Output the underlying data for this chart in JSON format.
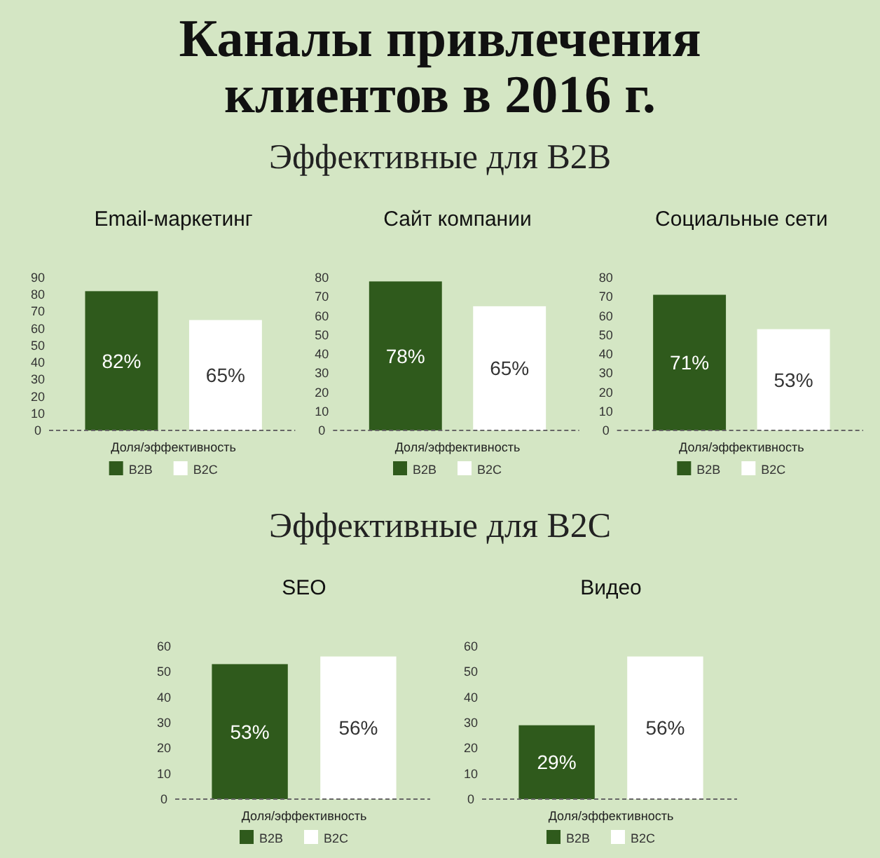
{
  "chart_data": [
    {
      "type": "other",
      "title": "Каналы привлечения клиентов в 2016 г.",
      "subtitle": "Эффективные для B2B"
    },
    {
      "type": "bar",
      "title": "Email-маркетинг",
      "categories": [
        null
      ],
      "xlabel": "Доля/эффективность",
      "ylim": [
        0,
        90
      ],
      "yticks": [
        0,
        10,
        20,
        30,
        40,
        50,
        60,
        70,
        80,
        90
      ],
      "legend": "bottom",
      "series": [
        {
          "name": "B2B",
          "color": "#2f5a1c",
          "values": [
            82
          ],
          "value_labels": [
            "82%"
          ]
        },
        {
          "name": "B2C",
          "color": "#ffffff",
          "values": [
            65
          ],
          "value_labels": [
            "65%"
          ]
        }
      ]
    },
    {
      "type": "bar",
      "title": "Сайт компании",
      "categories": [
        null
      ],
      "xlabel": "Доля/эффективность",
      "ylim": [
        0,
        80
      ],
      "yticks": [
        0,
        10,
        20,
        30,
        40,
        50,
        60,
        70,
        80
      ],
      "legend": "bottom",
      "series": [
        {
          "name": "B2B",
          "color": "#2f5a1c",
          "values": [
            78
          ],
          "value_labels": [
            "78%"
          ]
        },
        {
          "name": "B2C",
          "color": "#ffffff",
          "values": [
            65
          ],
          "value_labels": [
            "65%"
          ]
        }
      ]
    },
    {
      "type": "bar",
      "title": "Социальные сети",
      "categories": [
        null
      ],
      "xlabel": "Доля/эффективность",
      "ylim": [
        0,
        80
      ],
      "yticks": [
        0,
        10,
        20,
        30,
        40,
        50,
        60,
        70,
        80
      ],
      "legend": "bottom",
      "series": [
        {
          "name": "B2B",
          "color": "#2f5a1c",
          "values": [
            71
          ],
          "value_labels": [
            "71%"
          ]
        },
        {
          "name": "B2C",
          "color": "#ffffff",
          "values": [
            53
          ],
          "value_labels": [
            "53%"
          ]
        }
      ]
    },
    {
      "type": "other",
      "subtitle": "Эффективные для B2C"
    },
    {
      "type": "bar",
      "title": "SEO",
      "categories": [
        null
      ],
      "xlabel": "Доля/эффективность",
      "ylim": [
        0,
        60
      ],
      "yticks": [
        0,
        10,
        20,
        30,
        40,
        50,
        60
      ],
      "legend": "bottom",
      "series": [
        {
          "name": "B2B",
          "color": "#2f5a1c",
          "values": [
            53
          ],
          "value_labels": [
            "53%"
          ]
        },
        {
          "name": "B2C",
          "color": "#ffffff",
          "values": [
            56
          ],
          "value_labels": [
            "56%"
          ]
        }
      ]
    },
    {
      "type": "bar",
      "title": "Видео",
      "categories": [
        null
      ],
      "xlabel": "Доля/эффективность",
      "ylim": [
        0,
        60
      ],
      "yticks": [
        0,
        10,
        20,
        30,
        40,
        50,
        60
      ],
      "legend": "bottom",
      "series": [
        {
          "name": "B2B",
          "color": "#2f5a1c",
          "values": [
            29
          ],
          "value_labels": [
            "29%"
          ]
        },
        {
          "name": "B2C",
          "color": "#ffffff",
          "values": [
            56
          ],
          "value_labels": [
            "56%"
          ]
        }
      ]
    }
  ]
}
